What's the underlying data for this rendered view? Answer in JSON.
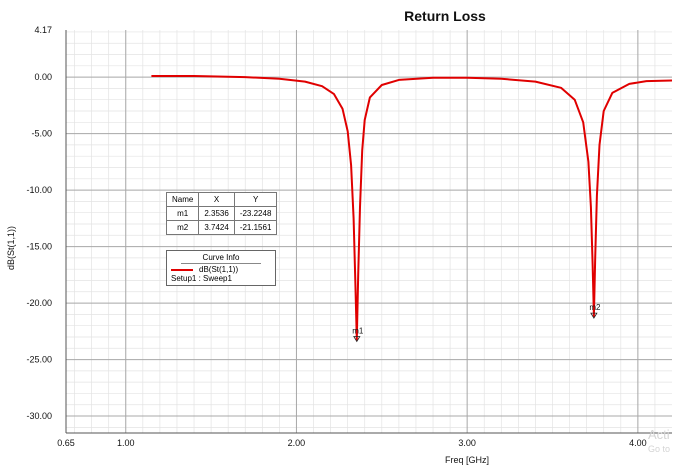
{
  "chart_data": {
    "type": "line",
    "title": "Return Loss",
    "xlabel": "Freq [GHz]",
    "ylabel": "dB(St(1,1))",
    "xlim": [
      0.65,
      4.2
    ],
    "ylim": [
      -31.5,
      4.17
    ],
    "x_ticks": [
      "0.65",
      "1.00",
      "2.00",
      "3.00",
      "4.00"
    ],
    "y_ticks": [
      "4.17",
      "0.00",
      "-5.00",
      "-10.00",
      "-15.00",
      "-20.00",
      "-25.00",
      "-30.00"
    ],
    "grid": true,
    "series": [
      {
        "name": "dB(St(1,1))",
        "color": "#e00000",
        "x": [
          1.15,
          1.4,
          1.7,
          1.9,
          2.05,
          2.15,
          2.22,
          2.27,
          2.3,
          2.32,
          2.335,
          2.345,
          2.3536,
          2.362,
          2.372,
          2.385,
          2.4,
          2.43,
          2.5,
          2.6,
          2.8,
          3.0,
          3.2,
          3.4,
          3.55,
          3.63,
          3.68,
          3.71,
          3.725,
          3.735,
          3.7424,
          3.75,
          3.76,
          3.775,
          3.8,
          3.85,
          3.95,
          4.05,
          4.2
        ],
        "y": [
          0.1,
          0.1,
          0.0,
          -0.15,
          -0.4,
          -0.8,
          -1.5,
          -2.8,
          -4.8,
          -7.8,
          -12.5,
          -18.0,
          -23.2248,
          -17.5,
          -11.5,
          -6.5,
          -3.8,
          -1.8,
          -0.7,
          -0.25,
          -0.05,
          -0.05,
          -0.15,
          -0.4,
          -0.95,
          -2.0,
          -4.0,
          -7.5,
          -11.5,
          -16.5,
          -21.1561,
          -16.0,
          -10.5,
          -6.0,
          -3.0,
          -1.4,
          -0.6,
          -0.35,
          -0.3
        ]
      }
    ],
    "markers": [
      {
        "name": "m1",
        "x": 2.3536,
        "y": -23.2248
      },
      {
        "name": "m2",
        "x": 3.7424,
        "y": -21.1561
      }
    ]
  },
  "marker_table": {
    "headers": [
      "Name",
      "X",
      "Y"
    ],
    "rows": [
      [
        "m1",
        "2.3536",
        "-23.2248"
      ],
      [
        "m2",
        "3.7424",
        "-21.1561"
      ]
    ]
  },
  "curve_info": {
    "title": "Curve Info",
    "trace": "dB(St(1,1))",
    "setup": "Setup1 : Sweep1"
  },
  "watermark": {
    "line1": "Acti",
    "line2": "Go to"
  }
}
